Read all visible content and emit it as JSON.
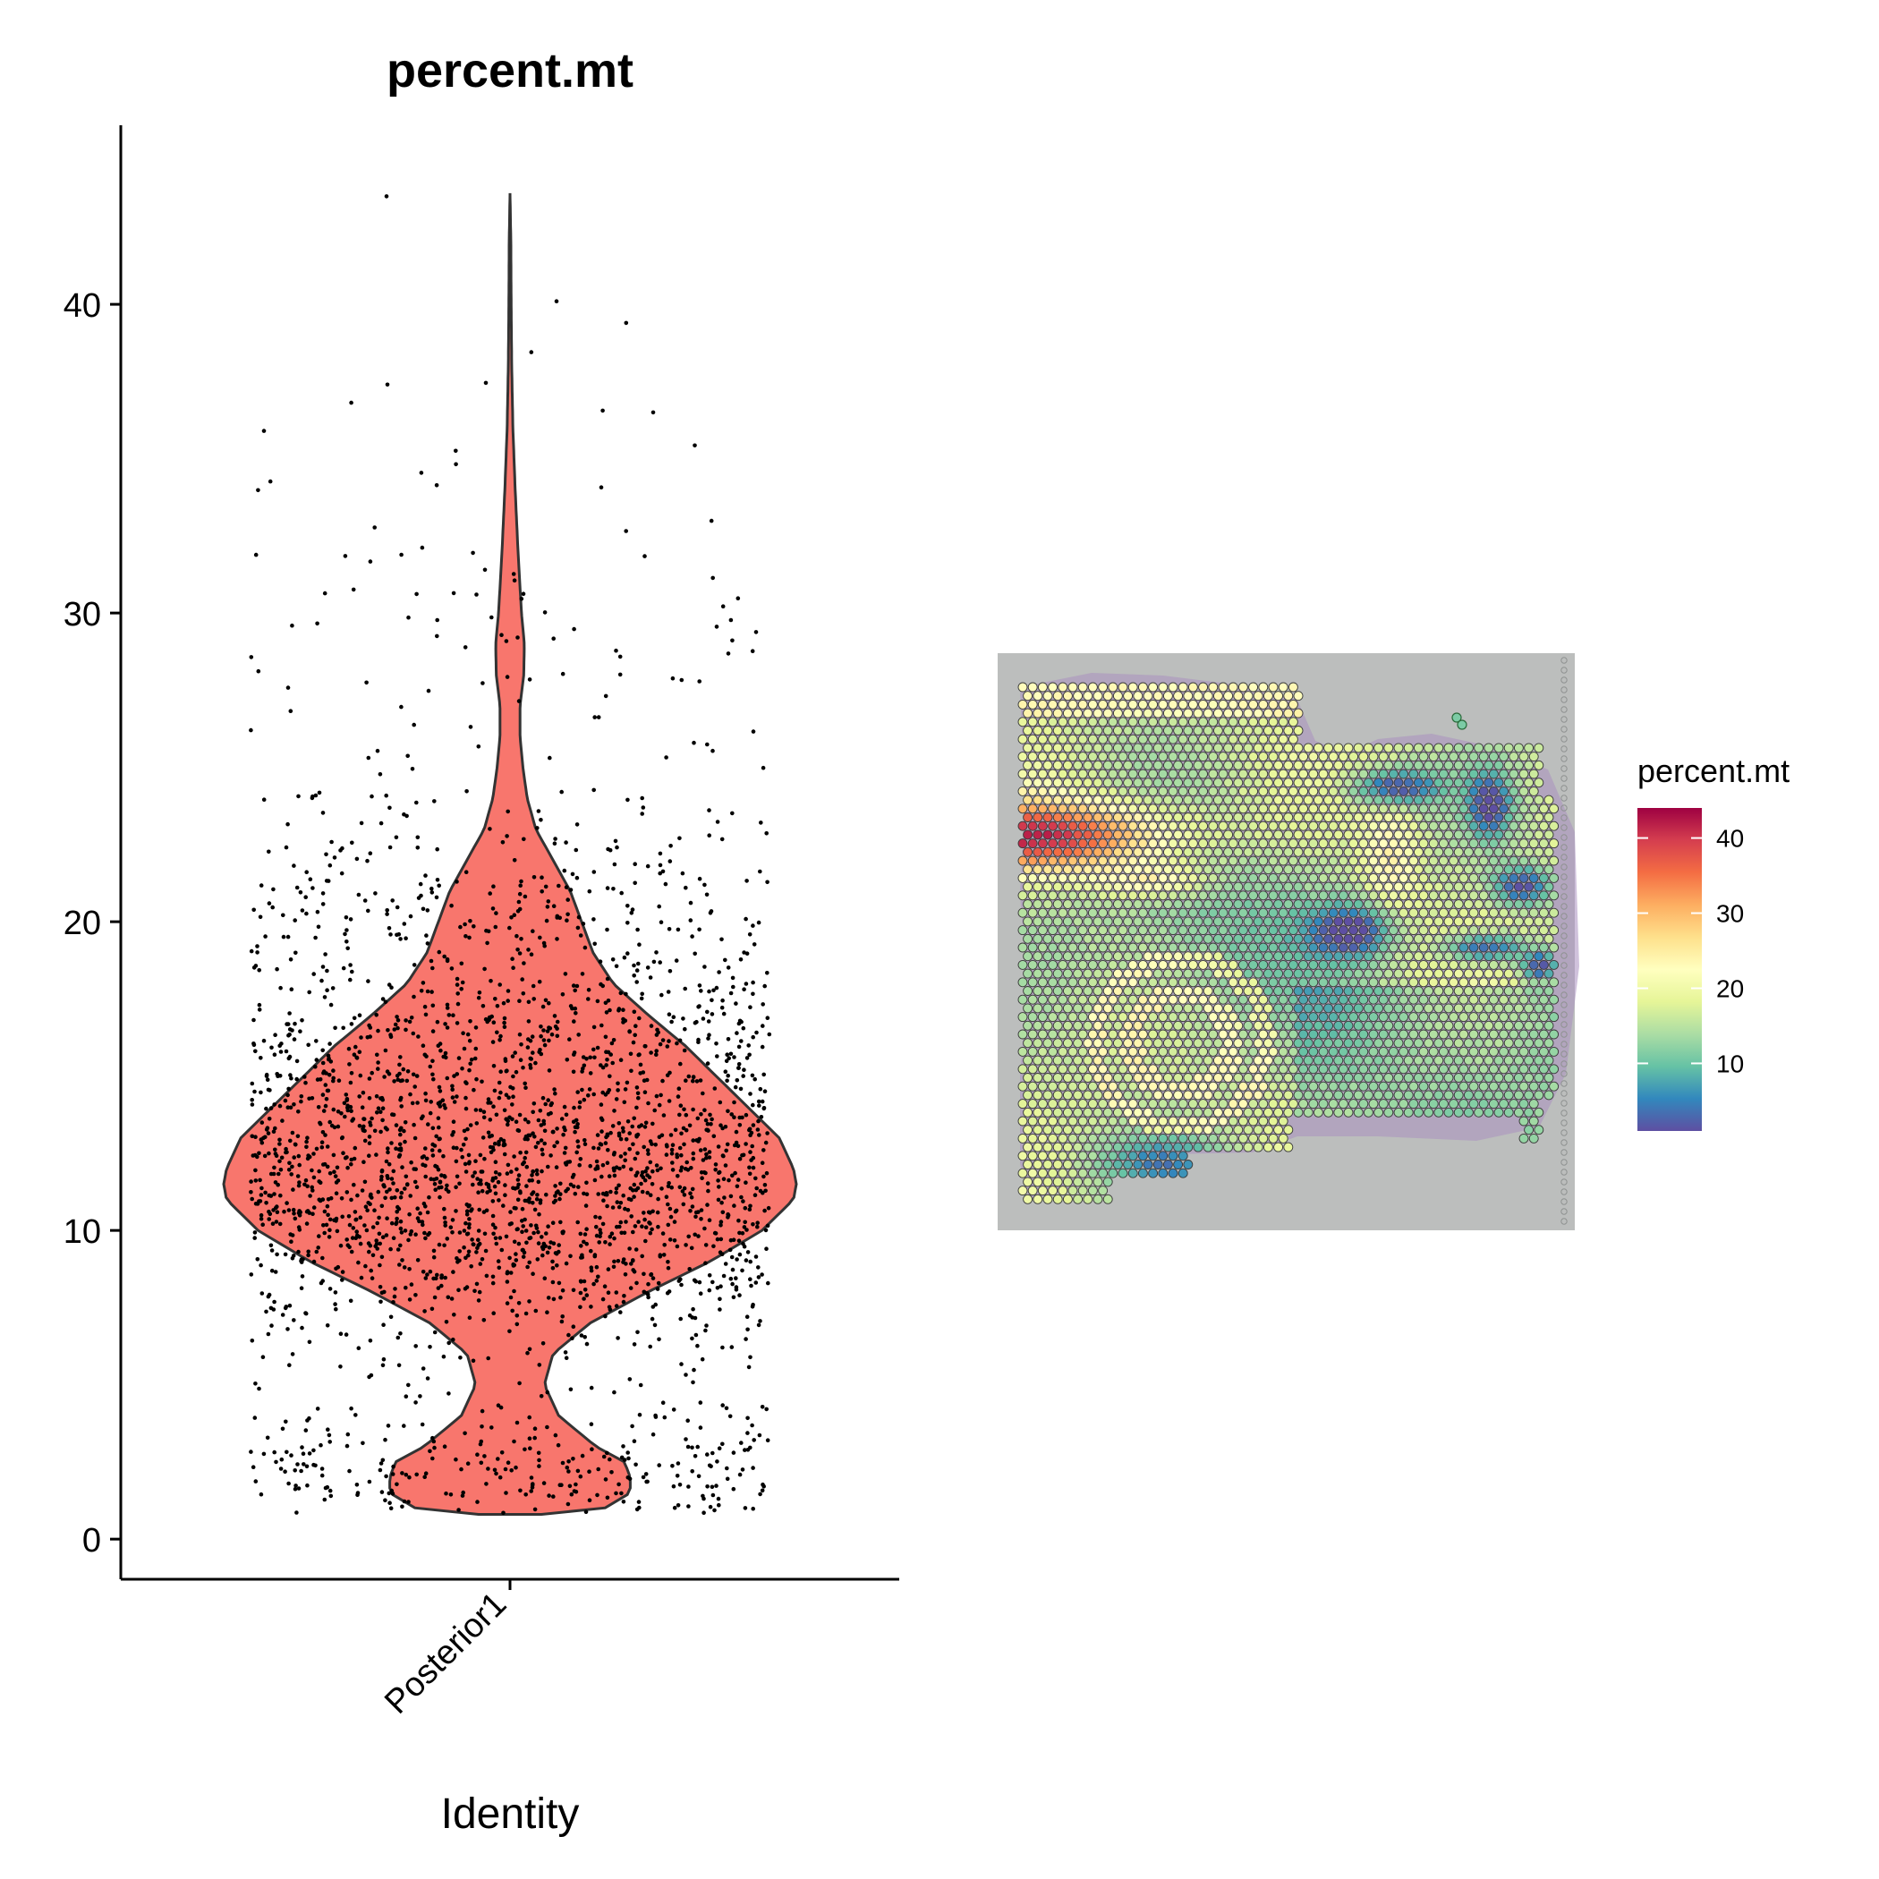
{
  "chart_data": [
    {
      "type": "violin",
      "title": "percent.mt",
      "xlabel": "Identity",
      "ylabel": "",
      "categories": [
        "Posterior1"
      ],
      "ylim": [
        -1.3,
        45.8
      ],
      "yticks": [
        0,
        10,
        20,
        30,
        40
      ],
      "fill_color": "#F8766D",
      "point_color": "#000000",
      "grid": false,
      "legend": "none",
      "density_profile": [
        {
          "y": 0.8,
          "d": 0.11
        },
        {
          "y": 1.0,
          "d": 0.33
        },
        {
          "y": 1.5,
          "d": 0.42
        },
        {
          "y": 2.0,
          "d": 0.42
        },
        {
          "y": 2.5,
          "d": 0.4
        },
        {
          "y": 3.0,
          "d": 0.3
        },
        {
          "y": 4.0,
          "d": 0.17
        },
        {
          "y": 5.0,
          "d": 0.12
        },
        {
          "y": 6.0,
          "d": 0.15
        },
        {
          "y": 7.0,
          "d": 0.28
        },
        {
          "y": 8.0,
          "d": 0.48
        },
        {
          "y": 9.0,
          "d": 0.7
        },
        {
          "y": 10.0,
          "d": 0.88
        },
        {
          "y": 11.0,
          "d": 0.99
        },
        {
          "y": 11.5,
          "d": 1.0
        },
        {
          "y": 12.0,
          "d": 0.99
        },
        {
          "y": 13.0,
          "d": 0.94
        },
        {
          "y": 14.0,
          "d": 0.83
        },
        {
          "y": 15.0,
          "d": 0.72
        },
        {
          "y": 16.0,
          "d": 0.61
        },
        {
          "y": 17.0,
          "d": 0.48
        },
        {
          "y": 18.0,
          "d": 0.36
        },
        {
          "y": 19.0,
          "d": 0.29
        },
        {
          "y": 20.0,
          "d": 0.25
        },
        {
          "y": 21.0,
          "d": 0.21
        },
        {
          "y": 22.0,
          "d": 0.15
        },
        {
          "y": 23.0,
          "d": 0.09
        },
        {
          "y": 24.0,
          "d": 0.06
        },
        {
          "y": 25.0,
          "d": 0.045
        },
        {
          "y": 26.0,
          "d": 0.035
        },
        {
          "y": 27.0,
          "d": 0.035
        },
        {
          "y": 28.0,
          "d": 0.048
        },
        {
          "y": 29.0,
          "d": 0.05
        },
        {
          "y": 30.0,
          "d": 0.04
        },
        {
          "y": 32.0,
          "d": 0.028
        },
        {
          "y": 34.0,
          "d": 0.018
        },
        {
          "y": 36.0,
          "d": 0.01
        },
        {
          "y": 38.0,
          "d": 0.006
        },
        {
          "y": 40.0,
          "d": 0.004
        },
        {
          "y": 42.0,
          "d": 0.003
        },
        {
          "y": 43.6,
          "d": 0.0
        }
      ]
    },
    {
      "type": "heatmap",
      "subtype": "spatial-feature-plot",
      "legend_title": "percent.mt",
      "legend_ticks": [
        10,
        20,
        30,
        40
      ],
      "value_range": [
        1,
        44
      ],
      "colorscale": [
        "#5E4FA2",
        "#3288BD",
        "#66C2A5",
        "#ABDDA4",
        "#E6F598",
        "#FFFFBF",
        "#FEE08B",
        "#FDAE61",
        "#F46D43",
        "#D53E4F",
        "#9E0142"
      ],
      "legend": "right",
      "background_color": "#bcbebd"
    }
  ]
}
